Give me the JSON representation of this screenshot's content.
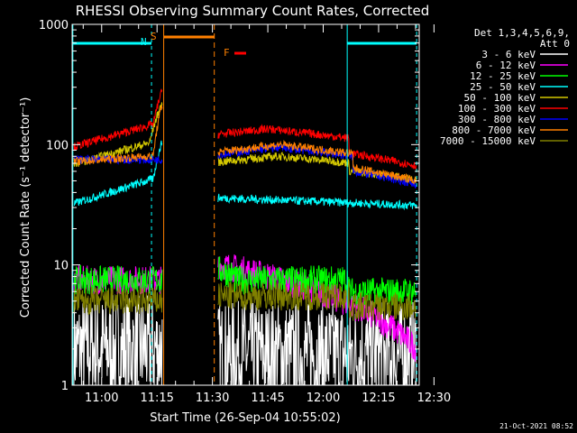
{
  "chart_data": {
    "type": "line",
    "title": "RHESSI Observing Summary Count Rates, Corrected",
    "xlabel": "Start Time (26-Sep-04 10:55:02)",
    "ylabel": "Corrected Count Rate (s⁻¹ detector⁻¹)",
    "yscale": "log",
    "ylim": [
      1,
      1000
    ],
    "xlim_minutes": [
      52,
      146
    ],
    "x_ticks": [
      {
        "t": 60,
        "label": "11:00"
      },
      {
        "t": 75,
        "label": "11:15"
      },
      {
        "t": 90,
        "label": "11:30"
      },
      {
        "t": 105,
        "label": "11:45"
      },
      {
        "t": 120,
        "label": "12:00"
      },
      {
        "t": 135,
        "label": "12:15"
      },
      {
        "t": 150,
        "label": "12:30"
      }
    ],
    "y_ticks": [
      {
        "v": 1,
        "label": "1"
      },
      {
        "v": 10,
        "label": "10"
      },
      {
        "v": 100,
        "label": "100"
      },
      {
        "v": 1000,
        "label": "1000"
      }
    ],
    "legend": {
      "position": "top-right",
      "header1": "Det 1,3,4,5,6,9,",
      "header2": "Att 0"
    },
    "series": [
      {
        "name": "3 - 6 keV",
        "color": "#ffffff"
      },
      {
        "name": "6 - 12 keV",
        "color": "#ff00ff"
      },
      {
        "name": "12 - 25 keV",
        "color": "#00ff00"
      },
      {
        "name": "25 - 50 keV",
        "color": "#00ffff"
      },
      {
        "name": "50 - 100 keV",
        "color": "#d4c800"
      },
      {
        "name": "100 - 300 keV",
        "color": "#ff0000"
      },
      {
        "name": "300 - 800 keV",
        "color": "#0000ff"
      },
      {
        "name": "800 - 7000 keV",
        "color": "#ff8000"
      },
      {
        "name": "7000 - 15000 keV",
        "color": "#808000"
      }
    ],
    "annotations": [
      {
        "name": "N",
        "type": "night",
        "color": "#00ffff",
        "t": 74,
        "level": 650
      },
      {
        "name": "S",
        "type": "saa",
        "color": "#ff8000",
        "t": 76,
        "level": 750
      },
      {
        "name": "F",
        "type": "flare",
        "color": "#ff8000",
        "t": 98,
        "level": 500
      }
    ]
  },
  "timestamp": "21-Oct-2021 08:52"
}
